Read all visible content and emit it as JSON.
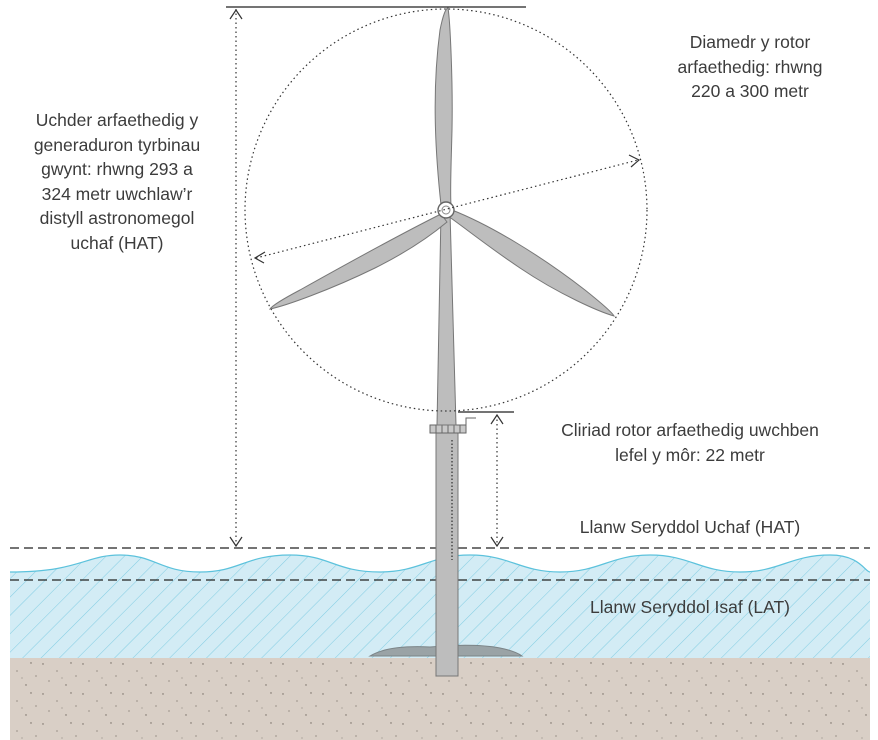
{
  "labels": {
    "turbine_height": [
      "Uchder arfaethedig y",
      "generaduron tyrbinau",
      "gwynt: rhwng 293 a",
      "324 metr uwchlaw’r",
      "distyll astronomegol",
      "uchaf (HAT)"
    ],
    "rotor_diameter": [
      "Diamedr y rotor",
      "arfaethedig: rhwng",
      "220 a 300 metr"
    ],
    "rotor_clearance": [
      "Cliriad rotor arfaethedig uwchben",
      "lefel y môr: 22 metr"
    ],
    "hat_level": "Llanw Seryddol Uchaf (HAT)",
    "lat_level": "Llanw Seryddol Isaf (LAT)"
  },
  "colors": {
    "sea_fill": "#d3ecf5",
    "sea_hatch": "#7fcbe2",
    "wave_line": "#5cc2dc",
    "seabed": "#d9cfc6",
    "turbine_fill": "#bdbdbd",
    "turbine_stroke": "#777777",
    "dimension_line": "#333333"
  }
}
